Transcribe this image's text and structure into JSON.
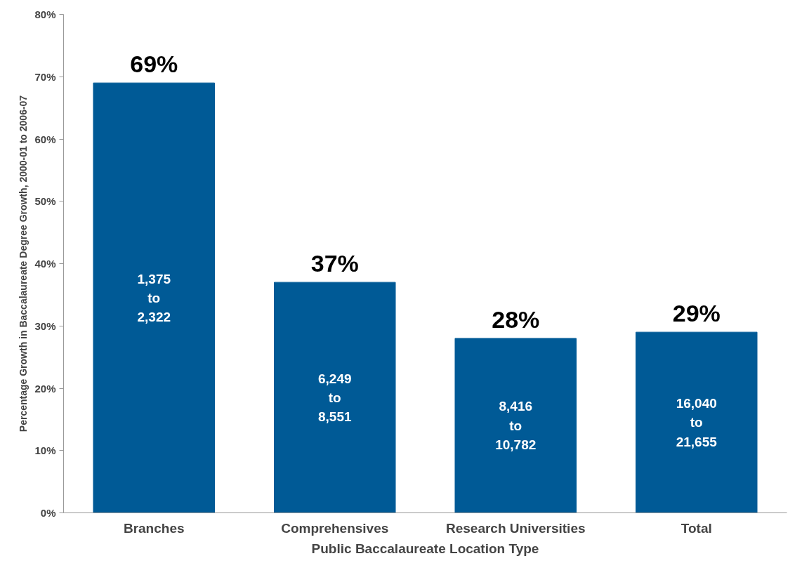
{
  "chart_data": {
    "type": "bar",
    "xlabel": "Public Baccalaureate Location Type",
    "ylabel": "Percentage Growth in Baccalaureate Degree Growth, 2000-01 to 2006-07",
    "categories": [
      "Branches",
      "Comprehensives",
      "Research Universities",
      "Total"
    ],
    "values": [
      69,
      37,
      28,
      29
    ],
    "color": "#005a96",
    "value_labels": [
      "69%",
      "37%",
      "28%",
      "29%"
    ],
    "ylim": [
      0,
      80
    ],
    "yticks": [
      {
        "value": 0,
        "label": "0%"
      },
      {
        "value": 10,
        "label": "10%"
      },
      {
        "value": 20,
        "label": "20%"
      },
      {
        "value": 30,
        "label": "30%"
      },
      {
        "value": 40,
        "label": "40%"
      },
      {
        "value": 50,
        "label": "50%"
      },
      {
        "value": 60,
        "label": "60%"
      },
      {
        "value": 70,
        "label": "70%"
      },
      {
        "value": 80,
        "label": "80%"
      }
    ],
    "grid": false,
    "annotations": [
      "1,375\nto\n2,322",
      "6,249\nto\n8,551",
      "8,416\nto\n10,782",
      "16,040\nto\n21,655"
    ]
  }
}
